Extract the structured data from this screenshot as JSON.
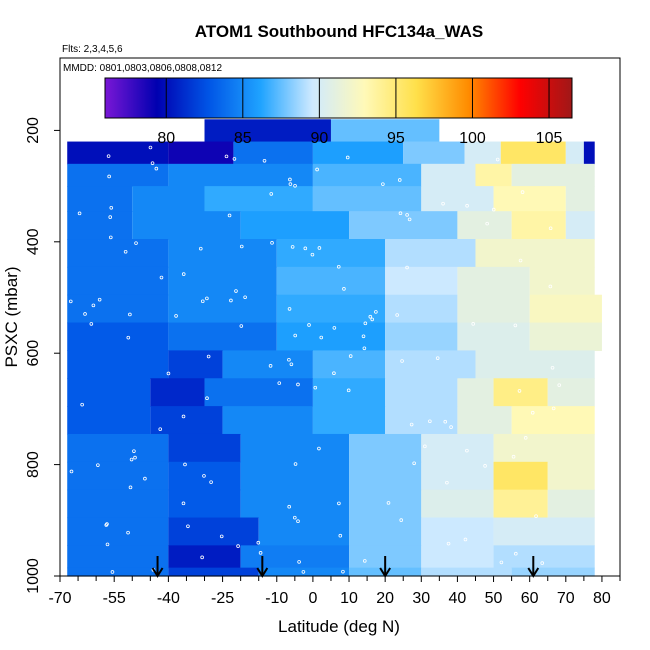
{
  "chart_data": {
    "type": "heatmap",
    "title": "ATOM1 Southbound HFC134a_WAS",
    "subtitle_flights": "Flts: 2,3,4,5,6",
    "subtitle_dates": "MMDD: 0801,0803,0806,0808,0812",
    "xlabel": "Latitude (deg N)",
    "ylabel": "PSXC (mbar)",
    "xlim": [
      -70,
      85
    ],
    "ylim": [
      1000,
      70
    ],
    "y_reversed": true,
    "x_ticks": [
      -70,
      -55,
      -40,
      -25,
      -10,
      0,
      10,
      20,
      30,
      40,
      50,
      60,
      70,
      80
    ],
    "y_ticks": [
      200,
      400,
      600,
      800,
      1000
    ],
    "colorbar": {
      "min": 76,
      "max": 106.5,
      "ticks": [
        80,
        85,
        90,
        95,
        100,
        105
      ],
      "colors": [
        "#7a17d6",
        "#0000b0",
        "#0055e6",
        "#1fa3ff",
        "#cfeaff",
        "#fff9b8",
        "#ffe04a",
        "#ff8c00",
        "#ff0000",
        "#a01818"
      ]
    },
    "pressure_levels": [
      {
        "p": 200,
        "segments": [
          [
            -30,
            5,
            80.5
          ],
          [
            5,
            35,
            87.5
          ]
        ]
      },
      {
        "p": 240,
        "segments": [
          [
            -68,
            -40,
            80
          ],
          [
            -40,
            -22,
            79
          ],
          [
            -22,
            0,
            84
          ],
          [
            0,
            25,
            86
          ],
          [
            25,
            42,
            88
          ],
          [
            42,
            52,
            90
          ],
          [
            52,
            70,
            95.5
          ],
          [
            70,
            75,
            90
          ],
          [
            75,
            78,
            80
          ]
        ]
      },
      {
        "p": 280,
        "segments": [
          [
            -68,
            -40,
            84
          ],
          [
            -40,
            0,
            85
          ],
          [
            0,
            30,
            87
          ],
          [
            30,
            45,
            90
          ],
          [
            45,
            55,
            93.5
          ],
          [
            55,
            78,
            91
          ]
        ]
      },
      {
        "p": 320,
        "segments": [
          [
            -68,
            -50,
            84
          ],
          [
            -50,
            -30,
            85
          ],
          [
            -30,
            0,
            86.5
          ],
          [
            0,
            30,
            87.5
          ],
          [
            30,
            50,
            90
          ],
          [
            50,
            70,
            93
          ],
          [
            70,
            78,
            91
          ]
        ]
      },
      {
        "p": 370,
        "segments": [
          [
            -68,
            -50,
            84
          ],
          [
            -50,
            -20,
            85
          ],
          [
            -20,
            10,
            86
          ],
          [
            10,
            40,
            88
          ],
          [
            40,
            55,
            91
          ],
          [
            55,
            70,
            93.5
          ],
          [
            70,
            78,
            90
          ]
        ]
      },
      {
        "p": 420,
        "segments": [
          [
            -68,
            -40,
            84
          ],
          [
            -40,
            -10,
            85
          ],
          [
            -10,
            20,
            86.5
          ],
          [
            20,
            45,
            89
          ],
          [
            45,
            78,
            92
          ]
        ]
      },
      {
        "p": 470,
        "segments": [
          [
            -68,
            -40,
            84
          ],
          [
            -40,
            -10,
            85
          ],
          [
            -10,
            20,
            87
          ],
          [
            20,
            40,
            89.5
          ],
          [
            40,
            60,
            91
          ],
          [
            60,
            78,
            92
          ]
        ]
      },
      {
        "p": 520,
        "segments": [
          [
            -68,
            -40,
            84
          ],
          [
            -40,
            -10,
            85
          ],
          [
            -10,
            20,
            86.5
          ],
          [
            20,
            40,
            89
          ],
          [
            40,
            60,
            91
          ],
          [
            60,
            80,
            92.5
          ]
        ]
      },
      {
        "p": 570,
        "segments": [
          [
            -68,
            -40,
            83
          ],
          [
            -40,
            -10,
            84
          ],
          [
            -10,
            20,
            86
          ],
          [
            20,
            40,
            88.5
          ],
          [
            40,
            60,
            90.5
          ],
          [
            60,
            80,
            91.5
          ]
        ]
      },
      {
        "p": 620,
        "segments": [
          [
            -68,
            -40,
            83
          ],
          [
            -40,
            -25,
            82
          ],
          [
            -25,
            0,
            85
          ],
          [
            0,
            20,
            87
          ],
          [
            20,
            45,
            89
          ],
          [
            45,
            78,
            90.5
          ]
        ]
      },
      {
        "p": 670,
        "segments": [
          [
            -68,
            -45,
            83
          ],
          [
            -45,
            -30,
            81
          ],
          [
            -30,
            0,
            84
          ],
          [
            0,
            20,
            86.5
          ],
          [
            20,
            40,
            89
          ],
          [
            40,
            50,
            91
          ],
          [
            50,
            65,
            94.5
          ],
          [
            65,
            78,
            91
          ]
        ]
      },
      {
        "p": 720,
        "segments": [
          [
            -68,
            -45,
            83
          ],
          [
            -45,
            -25,
            82
          ],
          [
            -25,
            0,
            85
          ],
          [
            0,
            20,
            86.5
          ],
          [
            20,
            40,
            89
          ],
          [
            40,
            55,
            91
          ],
          [
            55,
            78,
            93
          ]
        ]
      },
      {
        "p": 770,
        "segments": [
          [
            -68,
            -40,
            84
          ],
          [
            -40,
            -20,
            82
          ],
          [
            -20,
            10,
            85
          ],
          [
            10,
            30,
            88
          ],
          [
            30,
            50,
            90
          ],
          [
            50,
            78,
            92
          ]
        ]
      },
      {
        "p": 820,
        "segments": [
          [
            -68,
            -40,
            84
          ],
          [
            -40,
            -20,
            83
          ],
          [
            -20,
            10,
            85
          ],
          [
            10,
            30,
            88
          ],
          [
            30,
            50,
            90
          ],
          [
            50,
            65,
            95.5
          ],
          [
            65,
            78,
            92
          ]
        ]
      },
      {
        "p": 870,
        "segments": [
          [
            -68,
            -40,
            84
          ],
          [
            -40,
            -20,
            83
          ],
          [
            -20,
            10,
            85
          ],
          [
            10,
            30,
            88
          ],
          [
            30,
            50,
            90.5
          ],
          [
            50,
            65,
            94
          ],
          [
            65,
            78,
            91
          ]
        ]
      },
      {
        "p": 920,
        "segments": [
          [
            -68,
            -40,
            84
          ],
          [
            -40,
            -15,
            82
          ],
          [
            -15,
            10,
            85
          ],
          [
            10,
            30,
            88
          ],
          [
            30,
            50,
            89.5
          ],
          [
            50,
            78,
            90
          ]
        ]
      },
      {
        "p": 970,
        "segments": [
          [
            -68,
            -40,
            84
          ],
          [
            -40,
            -20,
            80.5
          ],
          [
            -20,
            10,
            84.5
          ],
          [
            10,
            30,
            88
          ],
          [
            30,
            50,
            89.5
          ],
          [
            50,
            78,
            89
          ]
        ]
      },
      {
        "p": 1000,
        "segments": [
          [
            -68,
            -40,
            84
          ],
          [
            -40,
            -15,
            82
          ],
          [
            -15,
            10,
            85
          ],
          [
            10,
            30,
            87.5
          ],
          [
            30,
            55,
            89
          ],
          [
            55,
            78,
            88.5
          ]
        ]
      }
    ],
    "profile_latitudes": [
      -43,
      -14,
      20,
      61
    ]
  }
}
